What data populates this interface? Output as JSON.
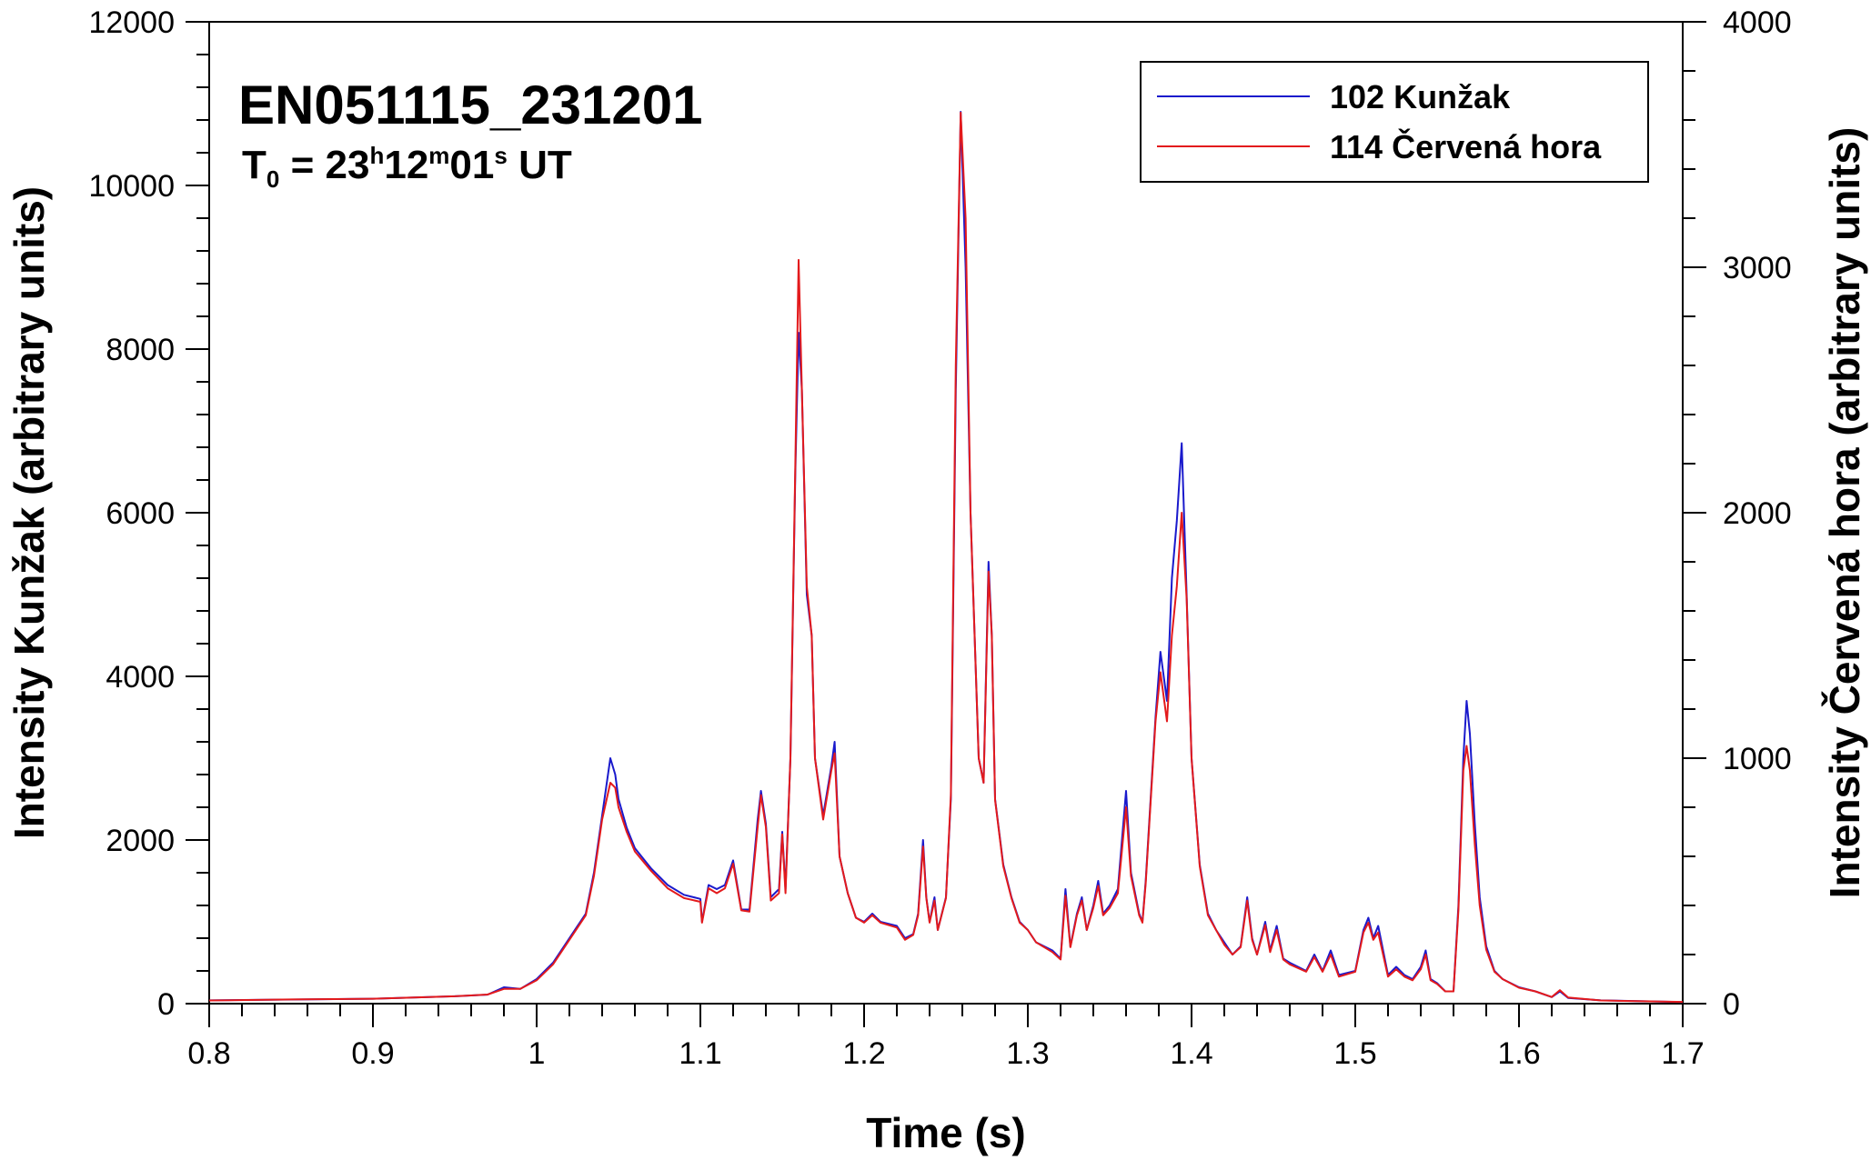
{
  "chart_data": {
    "type": "line",
    "title": "EN051115_231201",
    "subtitle": {
      "prefix": "T",
      "sub": "0",
      "eq": " = 23",
      "h": "h",
      "mid1": "12",
      "m": "m",
      "mid2": "01",
      "s": "s",
      "suffix": " UT"
    },
    "xlabel": "Time (s)",
    "ylabel_left": "Intensity Kunžak (arbitrary units)",
    "ylabel_right": "Intensity Červená hora (arbitrary units)",
    "xlim": [
      0.8,
      1.7
    ],
    "ylim_left": [
      0,
      12000
    ],
    "ylim_right": [
      0,
      4000
    ],
    "x_ticks": [
      "0.8",
      "0.9",
      "1",
      "1.1",
      "1.2",
      "1.3",
      "1.4",
      "1.5",
      "1.6",
      "1.7"
    ],
    "y_ticks_left": [
      "0",
      "2000",
      "4000",
      "6000",
      "8000",
      "10000",
      "12000"
    ],
    "y_ticks_right": [
      "0",
      "1000",
      "2000",
      "3000",
      "4000"
    ],
    "grid": false,
    "legend_position": "top-right",
    "series": [
      {
        "name": "102 Kunžak",
        "axis": "left",
        "color": "#1a1acc",
        "points": [
          [
            0.8,
            40
          ],
          [
            0.85,
            50
          ],
          [
            0.9,
            60
          ],
          [
            0.95,
            90
          ],
          [
            0.97,
            110
          ],
          [
            0.98,
            200
          ],
          [
            0.99,
            180
          ],
          [
            1.0,
            300
          ],
          [
            1.01,
            500
          ],
          [
            1.02,
            800
          ],
          [
            1.03,
            1100
          ],
          [
            1.035,
            1600
          ],
          [
            1.04,
            2300
          ],
          [
            1.045,
            3000
          ],
          [
            1.048,
            2800
          ],
          [
            1.05,
            2500
          ],
          [
            1.055,
            2150
          ],
          [
            1.06,
            1900
          ],
          [
            1.07,
            1650
          ],
          [
            1.08,
            1450
          ],
          [
            1.09,
            1330
          ],
          [
            1.1,
            1280
          ],
          [
            1.101,
            1000
          ],
          [
            1.105,
            1450
          ],
          [
            1.11,
            1400
          ],
          [
            1.115,
            1450
          ],
          [
            1.12,
            1750
          ],
          [
            1.125,
            1150
          ],
          [
            1.13,
            1150
          ],
          [
            1.135,
            2250
          ],
          [
            1.137,
            2600
          ],
          [
            1.14,
            2200
          ],
          [
            1.143,
            1300
          ],
          [
            1.148,
            1400
          ],
          [
            1.15,
            2100
          ],
          [
            1.152,
            1400
          ],
          [
            1.155,
            3000
          ],
          [
            1.158,
            6500
          ],
          [
            1.16,
            8200
          ],
          [
            1.162,
            7500
          ],
          [
            1.165,
            5000
          ],
          [
            1.168,
            4500
          ],
          [
            1.17,
            3000
          ],
          [
            1.175,
            2300
          ],
          [
            1.18,
            2900
          ],
          [
            1.182,
            3200
          ],
          [
            1.185,
            1800
          ],
          [
            1.19,
            1350
          ],
          [
            1.195,
            1050
          ],
          [
            1.2,
            1000
          ],
          [
            1.205,
            1100
          ],
          [
            1.21,
            1000
          ],
          [
            1.22,
            950
          ],
          [
            1.225,
            800
          ],
          [
            1.23,
            850
          ],
          [
            1.233,
            1100
          ],
          [
            1.236,
            2000
          ],
          [
            1.238,
            1300
          ],
          [
            1.24,
            1000
          ],
          [
            1.243,
            1300
          ],
          [
            1.245,
            900
          ],
          [
            1.25,
            1300
          ],
          [
            1.253,
            2500
          ],
          [
            1.256,
            7500
          ],
          [
            1.259,
            10900
          ],
          [
            1.262,
            9000
          ],
          [
            1.265,
            6000
          ],
          [
            1.27,
            3000
          ],
          [
            1.273,
            2700
          ],
          [
            1.276,
            5400
          ],
          [
            1.278,
            4500
          ],
          [
            1.28,
            2500
          ],
          [
            1.285,
            1700
          ],
          [
            1.29,
            1300
          ],
          [
            1.295,
            1000
          ],
          [
            1.3,
            900
          ],
          [
            1.305,
            750
          ],
          [
            1.31,
            700
          ],
          [
            1.315,
            650
          ],
          [
            1.32,
            550
          ],
          [
            1.323,
            1400
          ],
          [
            1.326,
            700
          ],
          [
            1.33,
            1100
          ],
          [
            1.333,
            1300
          ],
          [
            1.336,
            900
          ],
          [
            1.34,
            1200
          ],
          [
            1.343,
            1500
          ],
          [
            1.346,
            1100
          ],
          [
            1.35,
            1200
          ],
          [
            1.355,
            1400
          ],
          [
            1.36,
            2600
          ],
          [
            1.363,
            1600
          ],
          [
            1.368,
            1100
          ],
          [
            1.37,
            1000
          ],
          [
            1.372,
            1500
          ],
          [
            1.375,
            2500
          ],
          [
            1.378,
            3500
          ],
          [
            1.381,
            4300
          ],
          [
            1.385,
            3700
          ],
          [
            1.388,
            5200
          ],
          [
            1.391,
            5900
          ],
          [
            1.394,
            6850
          ],
          [
            1.397,
            5000
          ],
          [
            1.4,
            3000
          ],
          [
            1.405,
            1700
          ],
          [
            1.41,
            1100
          ],
          [
            1.415,
            900
          ],
          [
            1.42,
            750
          ],
          [
            1.425,
            600
          ],
          [
            1.43,
            700
          ],
          [
            1.434,
            1300
          ],
          [
            1.437,
            800
          ],
          [
            1.44,
            600
          ],
          [
            1.445,
            1000
          ],
          [
            1.448,
            650
          ],
          [
            1.452,
            950
          ],
          [
            1.456,
            550
          ],
          [
            1.46,
            500
          ],
          [
            1.47,
            400
          ],
          [
            1.475,
            600
          ],
          [
            1.48,
            400
          ],
          [
            1.485,
            650
          ],
          [
            1.49,
            350
          ],
          [
            1.5,
            400
          ],
          [
            1.505,
            900
          ],
          [
            1.508,
            1050
          ],
          [
            1.511,
            800
          ],
          [
            1.514,
            950
          ],
          [
            1.518,
            550
          ],
          [
            1.52,
            350
          ],
          [
            1.525,
            450
          ],
          [
            1.53,
            350
          ],
          [
            1.535,
            300
          ],
          [
            1.54,
            450
          ],
          [
            1.543,
            650
          ],
          [
            1.546,
            300
          ],
          [
            1.55,
            250
          ],
          [
            1.555,
            150
          ],
          [
            1.56,
            150
          ],
          [
            1.563,
            1200
          ],
          [
            1.566,
            3000
          ],
          [
            1.568,
            3700
          ],
          [
            1.57,
            3300
          ],
          [
            1.573,
            2200
          ],
          [
            1.576,
            1300
          ],
          [
            1.58,
            700
          ],
          [
            1.585,
            400
          ],
          [
            1.59,
            300
          ],
          [
            1.6,
            200
          ],
          [
            1.61,
            150
          ],
          [
            1.62,
            80
          ],
          [
            1.625,
            150
          ],
          [
            1.63,
            70
          ],
          [
            1.65,
            40
          ],
          [
            1.7,
            20
          ]
        ]
      },
      {
        "name": "114 Červená hora",
        "axis": "right",
        "color": "#e31a1c",
        "points": [
          [
            0.8,
            13
          ],
          [
            0.85,
            17
          ],
          [
            0.9,
            20
          ],
          [
            0.95,
            30
          ],
          [
            0.97,
            37
          ],
          [
            0.98,
            60
          ],
          [
            0.99,
            60
          ],
          [
            1.0,
            95
          ],
          [
            1.01,
            160
          ],
          [
            1.02,
            260
          ],
          [
            1.03,
            360
          ],
          [
            1.035,
            520
          ],
          [
            1.04,
            750
          ],
          [
            1.045,
            900
          ],
          [
            1.048,
            880
          ],
          [
            1.05,
            800
          ],
          [
            1.055,
            700
          ],
          [
            1.06,
            620
          ],
          [
            1.07,
            540
          ],
          [
            1.08,
            470
          ],
          [
            1.09,
            430
          ],
          [
            1.1,
            415
          ],
          [
            1.101,
            330
          ],
          [
            1.105,
            470
          ],
          [
            1.11,
            450
          ],
          [
            1.115,
            470
          ],
          [
            1.12,
            570
          ],
          [
            1.125,
            380
          ],
          [
            1.13,
            375
          ],
          [
            1.135,
            720
          ],
          [
            1.137,
            850
          ],
          [
            1.14,
            720
          ],
          [
            1.143,
            420
          ],
          [
            1.148,
            450
          ],
          [
            1.15,
            690
          ],
          [
            1.152,
            450
          ],
          [
            1.155,
            1000
          ],
          [
            1.158,
            2200
          ],
          [
            1.16,
            3030
          ],
          [
            1.162,
            2500
          ],
          [
            1.165,
            1700
          ],
          [
            1.168,
            1500
          ],
          [
            1.17,
            1000
          ],
          [
            1.175,
            750
          ],
          [
            1.18,
            950
          ],
          [
            1.182,
            1020
          ],
          [
            1.185,
            600
          ],
          [
            1.19,
            450
          ],
          [
            1.195,
            350
          ],
          [
            1.2,
            330
          ],
          [
            1.205,
            360
          ],
          [
            1.21,
            330
          ],
          [
            1.22,
            310
          ],
          [
            1.225,
            260
          ],
          [
            1.23,
            280
          ],
          [
            1.233,
            360
          ],
          [
            1.236,
            640
          ],
          [
            1.238,
            430
          ],
          [
            1.24,
            330
          ],
          [
            1.243,
            420
          ],
          [
            1.245,
            300
          ],
          [
            1.25,
            430
          ],
          [
            1.253,
            850
          ],
          [
            1.256,
            2600
          ],
          [
            1.259,
            3630
          ],
          [
            1.262,
            3200
          ],
          [
            1.265,
            2000
          ],
          [
            1.27,
            1000
          ],
          [
            1.273,
            900
          ],
          [
            1.276,
            1760
          ],
          [
            1.278,
            1500
          ],
          [
            1.28,
            830
          ],
          [
            1.285,
            560
          ],
          [
            1.29,
            430
          ],
          [
            1.295,
            330
          ],
          [
            1.3,
            300
          ],
          [
            1.305,
            250
          ],
          [
            1.31,
            230
          ],
          [
            1.315,
            210
          ],
          [
            1.32,
            180
          ],
          [
            1.323,
            440
          ],
          [
            1.326,
            230
          ],
          [
            1.33,
            360
          ],
          [
            1.333,
            420
          ],
          [
            1.336,
            300
          ],
          [
            1.34,
            390
          ],
          [
            1.343,
            480
          ],
          [
            1.346,
            360
          ],
          [
            1.35,
            390
          ],
          [
            1.355,
            450
          ],
          [
            1.36,
            800
          ],
          [
            1.363,
            520
          ],
          [
            1.368,
            360
          ],
          [
            1.37,
            330
          ],
          [
            1.372,
            490
          ],
          [
            1.375,
            820
          ],
          [
            1.378,
            1150
          ],
          [
            1.381,
            1350
          ],
          [
            1.385,
            1150
          ],
          [
            1.388,
            1500
          ],
          [
            1.391,
            1700
          ],
          [
            1.394,
            2000
          ],
          [
            1.397,
            1650
          ],
          [
            1.4,
            1000
          ],
          [
            1.405,
            560
          ],
          [
            1.41,
            360
          ],
          [
            1.415,
            300
          ],
          [
            1.42,
            240
          ],
          [
            1.425,
            200
          ],
          [
            1.43,
            230
          ],
          [
            1.434,
            420
          ],
          [
            1.437,
            260
          ],
          [
            1.44,
            200
          ],
          [
            1.445,
            320
          ],
          [
            1.448,
            210
          ],
          [
            1.452,
            300
          ],
          [
            1.456,
            180
          ],
          [
            1.46,
            160
          ],
          [
            1.47,
            130
          ],
          [
            1.475,
            190
          ],
          [
            1.48,
            130
          ],
          [
            1.485,
            200
          ],
          [
            1.49,
            110
          ],
          [
            1.5,
            130
          ],
          [
            1.505,
            290
          ],
          [
            1.508,
            330
          ],
          [
            1.511,
            260
          ],
          [
            1.514,
            290
          ],
          [
            1.518,
            170
          ],
          [
            1.52,
            110
          ],
          [
            1.525,
            140
          ],
          [
            1.53,
            110
          ],
          [
            1.535,
            95
          ],
          [
            1.54,
            140
          ],
          [
            1.543,
            200
          ],
          [
            1.546,
            95
          ],
          [
            1.55,
            80
          ],
          [
            1.555,
            50
          ],
          [
            1.56,
            50
          ],
          [
            1.563,
            380
          ],
          [
            1.566,
            950
          ],
          [
            1.568,
            1050
          ],
          [
            1.57,
            950
          ],
          [
            1.573,
            650
          ],
          [
            1.576,
            400
          ],
          [
            1.58,
            220
          ],
          [
            1.585,
            130
          ],
          [
            1.59,
            100
          ],
          [
            1.6,
            65
          ],
          [
            1.61,
            50
          ],
          [
            1.62,
            27
          ],
          [
            1.625,
            55
          ],
          [
            1.63,
            25
          ],
          [
            1.65,
            13
          ],
          [
            1.7,
            7
          ]
        ]
      }
    ]
  }
}
